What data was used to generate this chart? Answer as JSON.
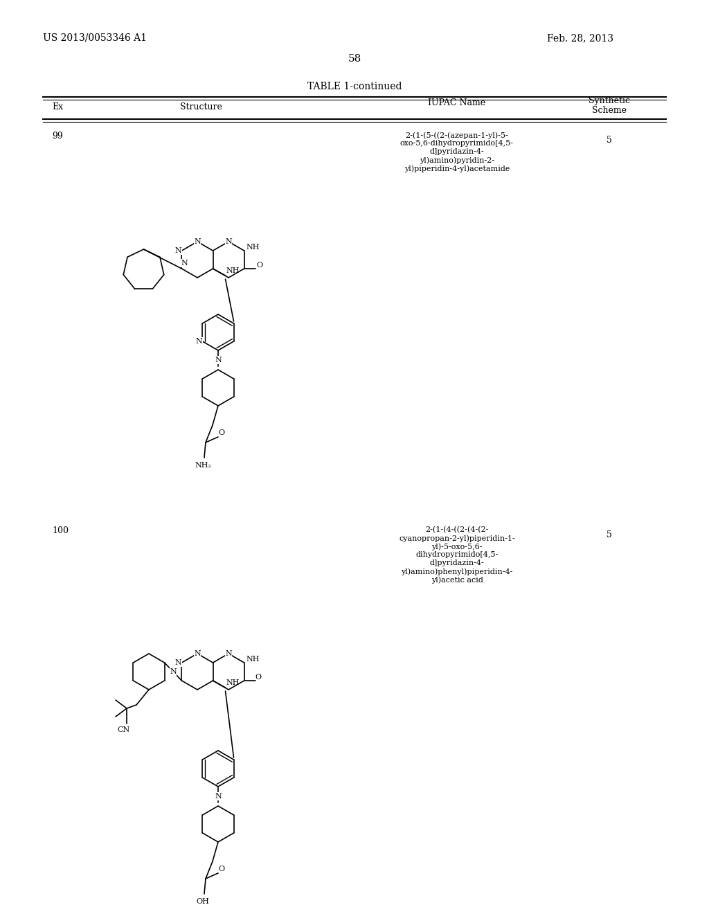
{
  "bg_color": "#ffffff",
  "header_left": "US 2013/0053346 A1",
  "header_right": "Feb. 28, 2013",
  "page_number": "58",
  "table_title": "TABLE 1-continued",
  "row99_ex": "99",
  "row99_iupac_lines": [
    "2-(1-(5-((2-(azepan-1-yl)-5-",
    "oxo-5,6-dihydropyrimido[4,5-",
    "d]pyridazin-4-",
    "yl)amino)pyridin-2-",
    "yl)piperidin-4-yl)acetamide"
  ],
  "row99_scheme": "5",
  "row100_ex": "100",
  "row100_iupac_lines": [
    "2-(1-(4-((2-(4-(2-",
    "cyanopropan-2-yl)piperidin-1-",
    "yl)-5-oxo-5,6-",
    "dihydropyrimido[4,5-",
    "d]pyridazin-4-",
    "yl)amino)phenyl)piperidin-4-",
    "yl)acetic acid"
  ],
  "row100_scheme": "5"
}
